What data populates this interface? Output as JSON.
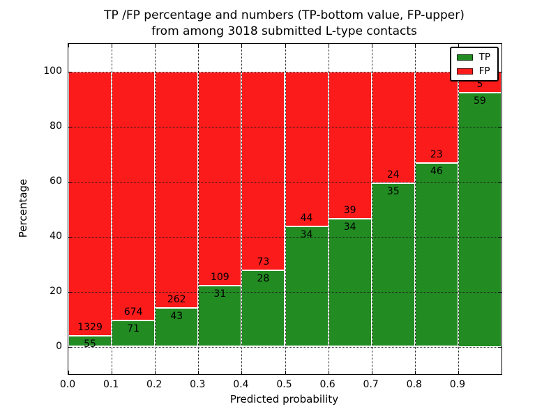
{
  "figure": {
    "title_line1": "TP /FP percentage and numbers (TP-bottom value, FP-upper)",
    "title_line2": "from among 3018 submitted L-type contacts",
    "background_color": "#ffffff"
  },
  "chart_data": {
    "type": "bar",
    "subtype": "stacked-percentage",
    "title": "TP /FP percentage and numbers (TP-bottom value, FP-upper) from among 3018 submitted L-type contacts",
    "xlabel": "Predicted probability",
    "ylabel": "Percentage",
    "total_contacts": 3018,
    "xlim": [
      0.0,
      1.0
    ],
    "ylim": [
      -10,
      110
    ],
    "bin_width": 0.1,
    "bin_starts": [
      0.0,
      0.1,
      0.2,
      0.3,
      0.4,
      0.5,
      0.6,
      0.7,
      0.8,
      0.9
    ],
    "xtick_labels": [
      "0.0",
      "0.1",
      "0.2",
      "0.3",
      "0.4",
      "0.5",
      "0.6",
      "0.7",
      "0.8",
      "0.9"
    ],
    "ytick_values": [
      0,
      20,
      40,
      60,
      80,
      100
    ],
    "grid_style": "dotted",
    "bar_edge_color": "#ffffff",
    "legend_position": "upper-right",
    "series": [
      {
        "name": "TP",
        "color": "#228b22",
        "counts": [
          55,
          71,
          43,
          31,
          28,
          34,
          34,
          35,
          46,
          59
        ]
      },
      {
        "name": "FP",
        "color": "#fb1b1b",
        "counts": [
          1329,
          674,
          262,
          109,
          73,
          44,
          39,
          24,
          23,
          5
        ]
      }
    ],
    "tp_percent": [
      3.97,
      9.53,
      14.1,
      22.14,
      27.72,
      43.59,
      46.58,
      59.32,
      66.67,
      92.19
    ]
  }
}
